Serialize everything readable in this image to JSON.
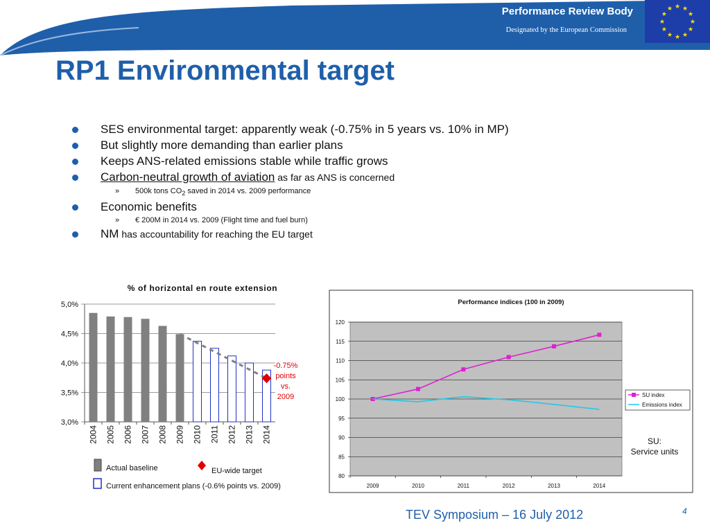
{
  "header": {
    "org": "Performance Review Body",
    "designation": "Designated  by the European Commission"
  },
  "title": "RP1 Environmental target",
  "bullets": {
    "b1": "SES environmental target: apparently weak (-0.75% in 5 years vs. 10% in MP)",
    "b2": "But slightly more demanding than earlier plans",
    "b3": "Keeps ANS-related emissions stable while traffic grows",
    "b4_main": "Carbon-neutral growth of aviation",
    "b4_rest": " as far as ANS is concerned",
    "b4_sub": {
      "pre": "500k tons CO",
      "sub": "2",
      "post": " saved in 2014 vs. 2009 performance"
    },
    "b5": "Economic benefits",
    "b5_sub": "€ 200M in 2014 vs. 2009 (Flight time and fuel burn)",
    "b6_main": "NM",
    "b6_rest": " has accountability for reaching the EU target"
  },
  "footer": {
    "event": "TEV Symposium – 16 July 2012",
    "page": "4"
  },
  "colors": {
    "blue": "#1f5faa",
    "baseline": "#808080",
    "plan_border": "#1f2fc8",
    "target": "#e00000",
    "su_line": "#e020d0",
    "em_line": "#20c8e8",
    "plot_bg": "#c0c0c0"
  },
  "chart_data": [
    {
      "type": "bar",
      "title": "% of horizontal en route extension",
      "categories": [
        "2004",
        "2005",
        "2006",
        "2007",
        "2008",
        "2009",
        "2010",
        "2011",
        "2012",
        "2013",
        "2014"
      ],
      "series": [
        {
          "name": "Actual baseline",
          "values": [
            4.85,
            4.79,
            4.78,
            4.75,
            4.63,
            4.49,
            null,
            null,
            null,
            null,
            null
          ]
        },
        {
          "name": "Current enhancement plans (-0.6% points vs. 2009)",
          "values": [
            null,
            null,
            null,
            null,
            null,
            null,
            4.37,
            4.25,
            4.12,
            4.0,
            3.88
          ]
        },
        {
          "name": "EU-wide target",
          "values": [
            null,
            null,
            null,
            null,
            null,
            null,
            null,
            null,
            null,
            null,
            3.74
          ]
        }
      ],
      "trend_line": [
        [
          2009,
          4.49
        ],
        [
          2014,
          3.74
        ]
      ],
      "yticks": [
        "5,0%",
        "4,5%",
        "4,0%",
        "3,5%",
        "3,0%"
      ],
      "ylim": [
        3.0,
        5.0
      ],
      "annotation": [
        "-0.75%",
        "points",
        "vs.",
        "2009"
      ],
      "legend": {
        "baseline": "Actual baseline",
        "target": "EU-wide target",
        "plans_icon": "",
        "plans": "Current enhancement plans (-0.6% points vs. 2009)"
      }
    },
    {
      "type": "line",
      "title": "Performance indices (100 in 2009)",
      "x": [
        "2009",
        "2010",
        "2011",
        "2012",
        "2013",
        "2014"
      ],
      "series": [
        {
          "name": "SU index",
          "values": [
            100,
            102.6,
            107.7,
            110.9,
            113.7,
            116.7
          ]
        },
        {
          "name": "Emissions index",
          "values": [
            100,
            99.3,
            100.6,
            99.8,
            98.6,
            97.3
          ]
        }
      ],
      "yticks": [
        "120",
        "115",
        "110",
        "105",
        "100",
        "95",
        "90",
        "85",
        "80"
      ],
      "ylim": [
        80,
        120
      ],
      "legend_position": "right",
      "note": [
        "SU:",
        "Service units"
      ]
    }
  ]
}
